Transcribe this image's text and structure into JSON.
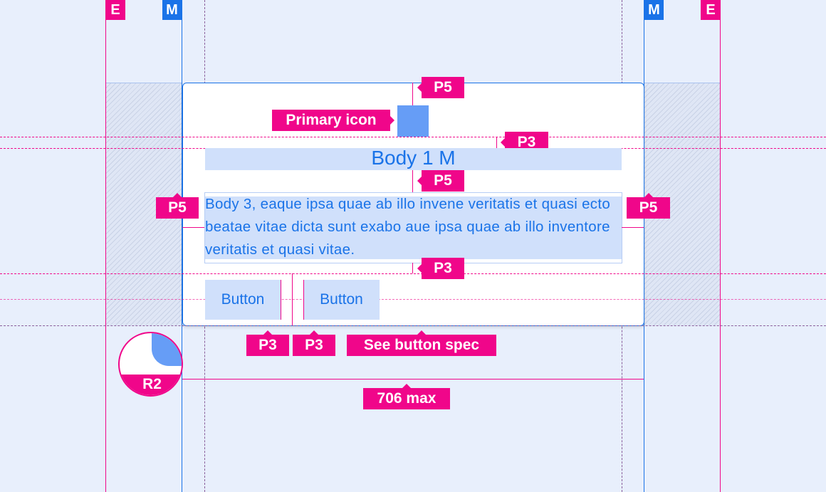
{
  "markers": {
    "edge": "E",
    "margin": "M"
  },
  "card": {
    "primary_icon_label": "Primary icon",
    "title": "Body 1 M",
    "body": "Body 3, eaque ipsa quae ab illo invene veritatis et quasi ecto beatae vitae dicta sunt exabo aue ipsa quae ab illo inventore veritatis et quasi vitae.",
    "buttons": [
      "Button",
      "Button"
    ]
  },
  "spacing": {
    "p5": "P5",
    "p3": "P3"
  },
  "annotations": {
    "button_spec": "See button spec",
    "max_width": "706 max",
    "radius": "R2"
  },
  "colors": {
    "annotation": "#f0068a",
    "margin": "#1a73e8",
    "icon": "#669df6",
    "highlight": "#d0e0fb",
    "background": "#e8effc"
  }
}
